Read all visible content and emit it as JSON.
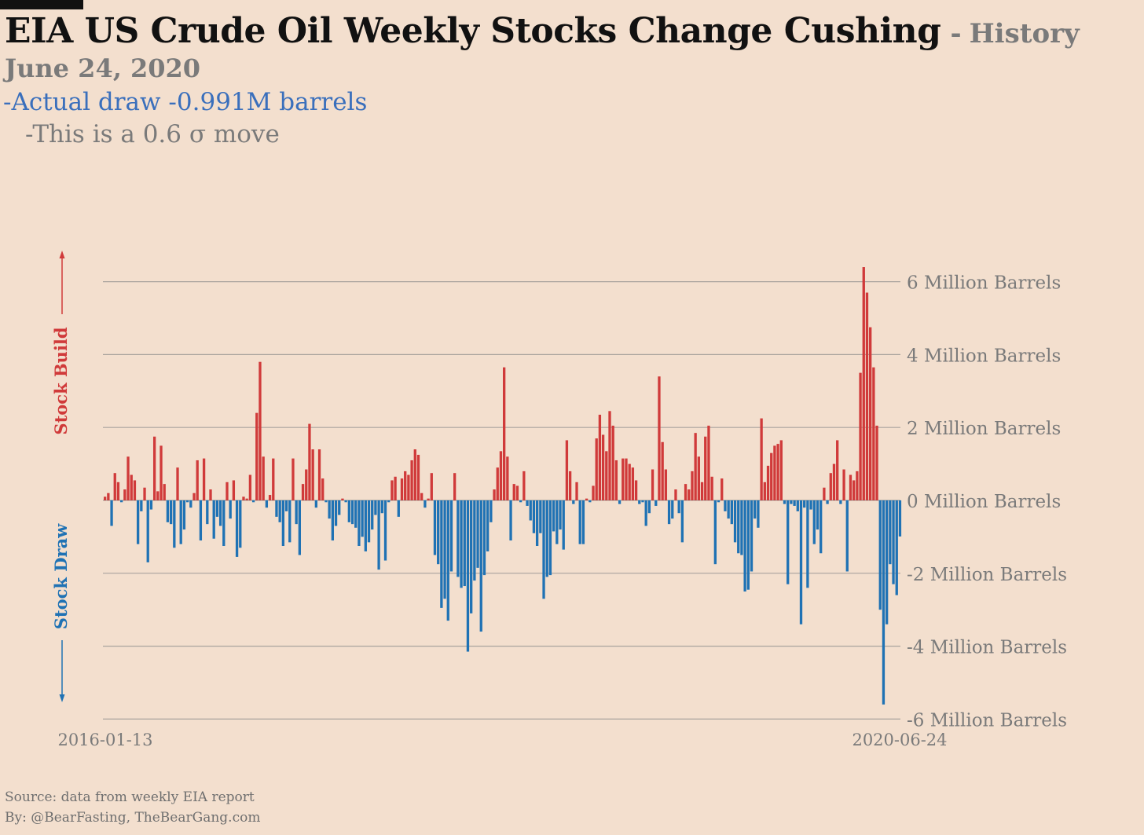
{
  "title": "EIA US Crude Oil Weekly Stocks Change Cushing",
  "title_separator": "-",
  "title_suffix": "History",
  "date": "June 24, 2020",
  "annotation_actual": "-Actual draw -0.991M barrels",
  "annotation_sigma": "-This is a 0.6 σ move",
  "arrow_labels": {
    "up": "Stock Build",
    "down": "Stock Draw"
  },
  "footer": {
    "source": "Source: data from  weekly EIA report",
    "by": "By: @BearFasting, TheBearGang.com"
  },
  "colors": {
    "background": "#f3dfce",
    "build": "#d03a3a",
    "draw": "#1f72b4",
    "grid": "#a9a39d",
    "text_gray": "#7a7a7a",
    "accent_blue": "#3a6fbc"
  },
  "chart_data": {
    "type": "bar",
    "title": "EIA US Crude Oil Weekly Stocks Change Cushing",
    "x_start": "2016-01-13",
    "x_end": "2020-06-24",
    "x_tick_labels": [
      "2016-01-13",
      "2020-06-24"
    ],
    "y_unit": "Million Barrels",
    "y_ticks": [
      {
        "value": 6,
        "label": "6 Million Barrels"
      },
      {
        "value": 4,
        "label": "4 Million Barrels"
      },
      {
        "value": 2,
        "label": "2 Million Barrels"
      },
      {
        "value": 0,
        "label": "0 Million Barrels"
      },
      {
        "value": -2,
        "label": "-2 Million Barrels"
      },
      {
        "value": -4,
        "label": "-4 Million Barrels"
      },
      {
        "value": -6,
        "label": "-6 Million Barrels"
      }
    ],
    "ylim": [
      -6,
      6.5
    ],
    "grid": true,
    "y_axis_side": "right",
    "positive_color": "#d03a3a",
    "negative_color": "#1f72b4",
    "values": [
      0.1,
      0.2,
      -0.7,
      0.75,
      0.5,
      -0.05,
      0.3,
      1.2,
      0.7,
      0.55,
      -1.2,
      -0.3,
      0.35,
      -1.7,
      -0.25,
      1.75,
      0.25,
      1.5,
      0.45,
      -0.6,
      -0.65,
      -1.3,
      0.9,
      -1.2,
      -0.8,
      -0.05,
      -0.2,
      0.2,
      1.1,
      -1.1,
      1.15,
      -0.65,
      0.3,
      -1.05,
      -0.45,
      -0.7,
      -1.25,
      0.5,
      -0.5,
      0.55,
      -1.55,
      -1.3,
      0.1,
      0.05,
      0.7,
      -0.05,
      2.4,
      3.8,
      1.2,
      -0.2,
      0.15,
      1.15,
      -0.45,
      -0.6,
      -1.25,
      -0.3,
      -1.15,
      1.15,
      -0.65,
      -1.5,
      0.45,
      0.85,
      2.1,
      1.4,
      -0.2,
      1.4,
      0.6,
      -0.05,
      -0.5,
      -1.1,
      -0.7,
      -0.4,
      0.05,
      -0.05,
      -0.6,
      -0.65,
      -0.75,
      -1.25,
      -1.0,
      -1.4,
      -1.15,
      -0.8,
      -0.4,
      -1.9,
      -0.35,
      -1.65,
      -0.05,
      0.55,
      0.65,
      -0.45,
      0.6,
      0.8,
      0.7,
      1.1,
      1.4,
      1.25,
      0.2,
      -0.2,
      0.05,
      0.75,
      -1.5,
      -1.75,
      -2.95,
      -2.7,
      -3.3,
      -1.95,
      0.75,
      -2.1,
      -2.4,
      -2.35,
      -4.15,
      -3.1,
      -2.2,
      -1.85,
      -3.6,
      -2.05,
      -1.4,
      -0.6,
      0.3,
      0.9,
      1.35,
      3.65,
      1.2,
      -1.1,
      0.45,
      0.4,
      -0.05,
      0.8,
      -0.15,
      -0.55,
      -0.9,
      -1.25,
      -0.9,
      -2.7,
      -2.1,
      -2.05,
      -0.85,
      -1.2,
      -0.8,
      -1.35,
      1.65,
      0.8,
      -0.1,
      0.5,
      -1.2,
      -1.2,
      0.05,
      -0.05,
      0.4,
      1.7,
      2.35,
      1.8,
      1.35,
      2.45,
      2.05,
      1.1,
      -0.1,
      1.15,
      1.15,
      1.0,
      0.9,
      0.55,
      -0.1,
      -0.05,
      -0.7,
      -0.35,
      0.85,
      -0.15,
      3.4,
      1.6,
      0.85,
      -0.65,
      -0.5,
      0.3,
      -0.35,
      -1.15,
      0.45,
      0.3,
      0.8,
      1.85,
      1.2,
      0.5,
      1.75,
      2.05,
      0.65,
      -1.75,
      -0.05,
      0.6,
      -0.3,
      -0.5,
      -0.65,
      -1.15,
      -1.45,
      -1.5,
      -2.5,
      -2.45,
      -1.95,
      -0.5,
      -0.75,
      2.25,
      0.5,
      0.95,
      1.3,
      1.5,
      1.55,
      1.65,
      -0.1,
      -2.3,
      -0.1,
      -0.15,
      -0.3,
      -3.4,
      -0.2,
      -2.4,
      -0.25,
      -1.2,
      -0.8,
      -1.45,
      0.35,
      -0.1,
      0.75,
      1.0,
      1.65,
      -0.1,
      0.85,
      -1.95,
      0.7,
      0.55,
      0.8,
      3.5,
      6.4,
      5.7,
      4.75,
      3.65,
      2.05,
      -3.0,
      -5.6,
      -3.4,
      -1.75,
      -2.3,
      -2.6,
      -0.991
    ]
  }
}
